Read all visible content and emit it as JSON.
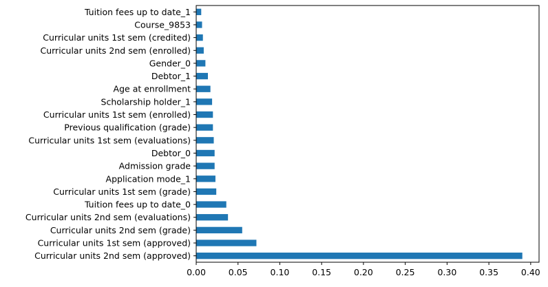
{
  "chart_data": {
    "type": "bar",
    "orientation": "horizontal",
    "title": "",
    "xlabel": "",
    "ylabel": "",
    "xlim": [
      0,
      0.41
    ],
    "x_ticks": [
      "0.00",
      "0.05",
      "0.10",
      "0.15",
      "0.20",
      "0.25",
      "0.30",
      "0.35",
      "0.40"
    ],
    "grid": false,
    "legend": "none",
    "bar_color": "#1f77b4",
    "categories": [
      "Curricular units 2nd sem (approved)",
      "Curricular units 1st sem (approved)",
      "Curricular units 2nd sem (grade)",
      "Curricular units 2nd sem (evaluations)",
      "Tuition fees up to date_0",
      "Curricular units 1st sem (grade)",
      "Application mode_1",
      "Admission grade",
      "Debtor_0",
      "Curricular units 1st sem (evaluations)",
      "Previous qualification (grade)",
      "Curricular units 1st sem (enrolled)",
      "Scholarship holder_1",
      "Age at enrollment",
      "Debtor_1",
      "Gender_0",
      "Curricular units 2nd sem (enrolled)",
      "Curricular units 1st sem (credited)",
      "Course_9853",
      "Tuition fees up to date_1"
    ],
    "values": [
      0.39,
      0.072,
      0.055,
      0.038,
      0.036,
      0.024,
      0.023,
      0.022,
      0.022,
      0.021,
      0.02,
      0.02,
      0.019,
      0.017,
      0.014,
      0.011,
      0.009,
      0.008,
      0.007,
      0.006
    ]
  }
}
